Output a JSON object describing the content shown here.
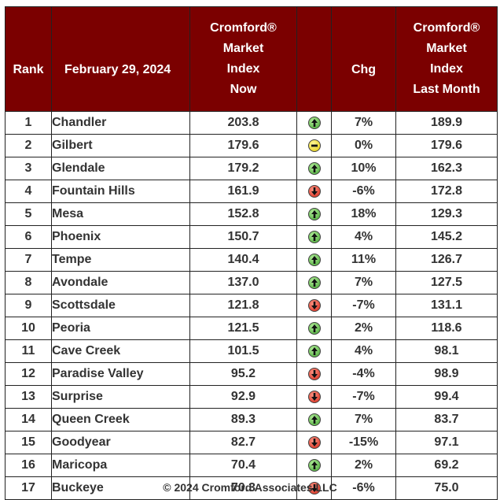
{
  "header": {
    "rank": "Rank",
    "date": "February 29, 2024",
    "now_lines": [
      "Cromford®",
      "Market",
      "Index",
      "Now"
    ],
    "chg": "Chg",
    "last_lines": [
      "Cromford®",
      "Market",
      "Index",
      "Last Month"
    ]
  },
  "chart_data": {
    "type": "table",
    "columns": [
      "Rank",
      "February 29, 2024",
      "Cromford® Market Index Now",
      "Chg",
      "Cromford® Market Index Last Month"
    ],
    "rows": [
      {
        "rank": "1",
        "city": "Chandler",
        "now": "203.8",
        "dir": "up",
        "chg": "7%",
        "last": "189.9"
      },
      {
        "rank": "2",
        "city": "Gilbert",
        "now": "179.6",
        "dir": "flat",
        "chg": "0%",
        "last": "179.6"
      },
      {
        "rank": "3",
        "city": "Glendale",
        "now": "179.2",
        "dir": "up",
        "chg": "10%",
        "last": "162.3"
      },
      {
        "rank": "4",
        "city": "Fountain Hills",
        "now": "161.9",
        "dir": "down",
        "chg": "-6%",
        "last": "172.8"
      },
      {
        "rank": "5",
        "city": "Mesa",
        "now": "152.8",
        "dir": "up",
        "chg": "18%",
        "last": "129.3"
      },
      {
        "rank": "6",
        "city": "Phoenix",
        "now": "150.7",
        "dir": "up",
        "chg": "4%",
        "last": "145.2"
      },
      {
        "rank": "7",
        "city": "Tempe",
        "now": "140.4",
        "dir": "up",
        "chg": "11%",
        "last": "126.7"
      },
      {
        "rank": "8",
        "city": "Avondale",
        "now": "137.0",
        "dir": "up",
        "chg": "7%",
        "last": "127.5"
      },
      {
        "rank": "9",
        "city": "Scottsdale",
        "now": "121.8",
        "dir": "down",
        "chg": "-7%",
        "last": "131.1"
      },
      {
        "rank": "10",
        "city": "Peoria",
        "now": "121.5",
        "dir": "up",
        "chg": "2%",
        "last": "118.6"
      },
      {
        "rank": "11",
        "city": "Cave Creek",
        "now": "101.5",
        "dir": "up",
        "chg": "4%",
        "last": "98.1"
      },
      {
        "rank": "12",
        "city": "Paradise Valley",
        "now": "95.2",
        "dir": "down",
        "chg": "-4%",
        "last": "98.9"
      },
      {
        "rank": "13",
        "city": "Surprise",
        "now": "92.9",
        "dir": "down",
        "chg": "-7%",
        "last": "99.4"
      },
      {
        "rank": "14",
        "city": "Queen Creek",
        "now": "89.3",
        "dir": "up",
        "chg": "7%",
        "last": "83.7"
      },
      {
        "rank": "15",
        "city": "Goodyear",
        "now": "82.7",
        "dir": "down",
        "chg": "-15%",
        "last": "97.1"
      },
      {
        "rank": "16",
        "city": "Maricopa",
        "now": "70.4",
        "dir": "up",
        "chg": "2%",
        "last": "69.2"
      },
      {
        "rank": "17",
        "city": "Buckeye",
        "now": "70.3",
        "dir": "down",
        "chg": "-6%",
        "last": "75.0"
      }
    ]
  },
  "footer": "© 2024 Cromford Associates LLC",
  "colors": {
    "header_bg": "#7b0000",
    "header_text": "#ffffff",
    "up": "#3ca02a",
    "down": "#d42010",
    "flat": "#e2c800"
  }
}
